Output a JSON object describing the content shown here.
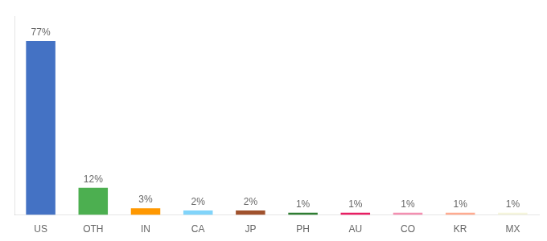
{
  "chart_data": {
    "type": "bar",
    "categories": [
      "US",
      "OTH",
      "IN",
      "CA",
      "JP",
      "PH",
      "AU",
      "CO",
      "KR",
      "MX"
    ],
    "values": [
      77,
      12,
      3,
      2,
      2,
      1,
      1,
      1,
      1,
      1
    ],
    "value_labels": [
      "77%",
      "12%",
      "3%",
      "2%",
      "2%",
      "1%",
      "1%",
      "1%",
      "1%",
      "1%"
    ],
    "data_labels": true,
    "colors": [
      "#4472C4",
      "#4CAF50",
      "#FF9800",
      "#81D4FA",
      "#A0522D",
      "#2E7D32",
      "#E91E63",
      "#F48FB1",
      "#FFAB91",
      "#F5F5DC"
    ],
    "ylim": [
      0,
      88
    ],
    "grid": false,
    "tick_labels": "x"
  }
}
